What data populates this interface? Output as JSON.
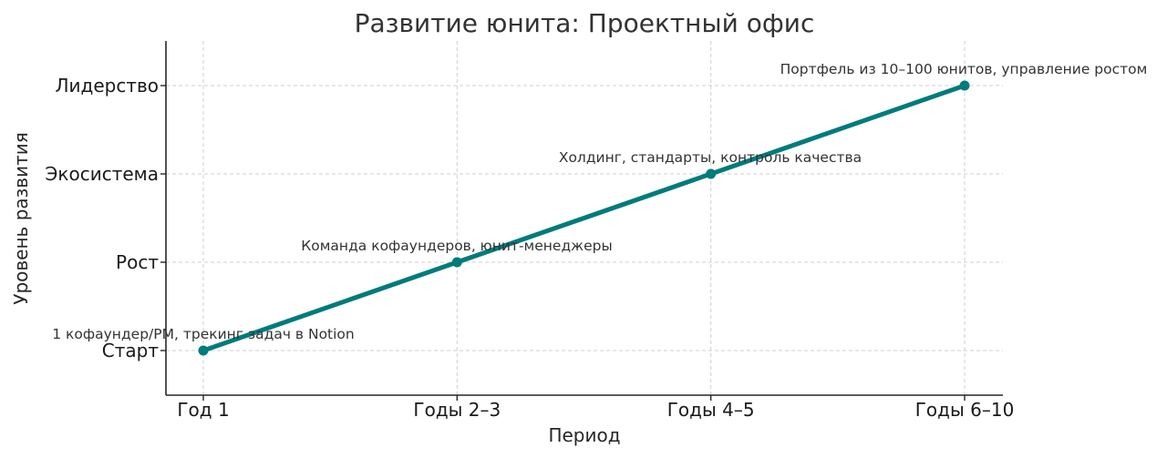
{
  "chart_data": {
    "type": "line",
    "title": "Развитие юнита: Проектный офис",
    "xlabel": "Период",
    "ylabel": "Уровень развития",
    "categories": [
      "Год 1",
      "Годы 2–3",
      "Годы 4–5",
      "Годы 6–10"
    ],
    "y_categories": [
      "Старт",
      "Рост",
      "Экосистема",
      "Лидерство"
    ],
    "series": [
      {
        "values": [
          0,
          1,
          2,
          3
        ],
        "color": "#007b7b"
      }
    ],
    "annotations": [
      "1 кофаундер/PM, трекинг задач в Notion",
      "Команда кофаундеров, юнит-менеджеры",
      "Холдинг, стандарты, контроль качества",
      "Портфель из 10–100 юнитов, управление ростом"
    ],
    "grid": true
  }
}
